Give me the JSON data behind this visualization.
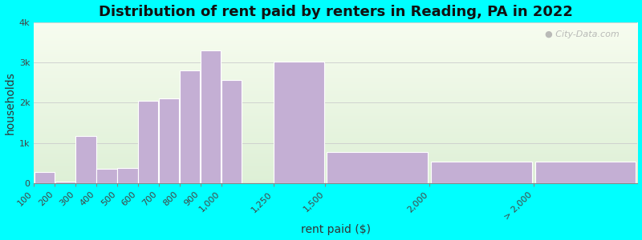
{
  "title": "Distribution of rent paid by renters in Reading, PA in 2022",
  "xlabel": "rent paid ($)",
  "ylabel": "households",
  "bar_color": "#c4afd4",
  "bar_edgecolor": "#ffffff",
  "background_outer": "#00ffff",
  "background_inner": "#eef4e8",
  "categories": [
    "100",
    "200",
    "300",
    "400",
    "500",
    "600",
    "700",
    "800",
    "900",
    "1,000",
    "1,250",
    "1,500",
    "2,000",
    "> 2,000"
  ],
  "values": [
    280,
    30,
    1180,
    350,
    380,
    2050,
    2100,
    2800,
    3300,
    2570,
    3020,
    780,
    530,
    530
  ],
  "bin_lefts": [
    100,
    200,
    300,
    400,
    500,
    600,
    700,
    800,
    900,
    1000,
    1250,
    1500,
    2000,
    2500
  ],
  "bin_widths": [
    100,
    100,
    100,
    100,
    100,
    100,
    100,
    100,
    100,
    100,
    250,
    500,
    500,
    500
  ],
  "xtick_positions": [
    100,
    200,
    300,
    400,
    500,
    600,
    700,
    800,
    900,
    1000,
    1250,
    1500,
    2000,
    2500
  ],
  "xtick_labels": [
    "100",
    "200",
    "300",
    "400",
    "500",
    "600",
    "700",
    "800",
    "900",
    "1,000",
    "1,250",
    "1,500",
    "2,000",
    "> 2,000"
  ],
  "xlim": [
    100,
    3000
  ],
  "ylim": [
    0,
    4000
  ],
  "yticks": [
    0,
    1000,
    2000,
    3000,
    4000
  ],
  "ytick_labels": [
    "0",
    "1k",
    "2k",
    "3k",
    "4k"
  ],
  "title_fontsize": 13,
  "axis_label_fontsize": 10,
  "tick_fontsize": 8
}
